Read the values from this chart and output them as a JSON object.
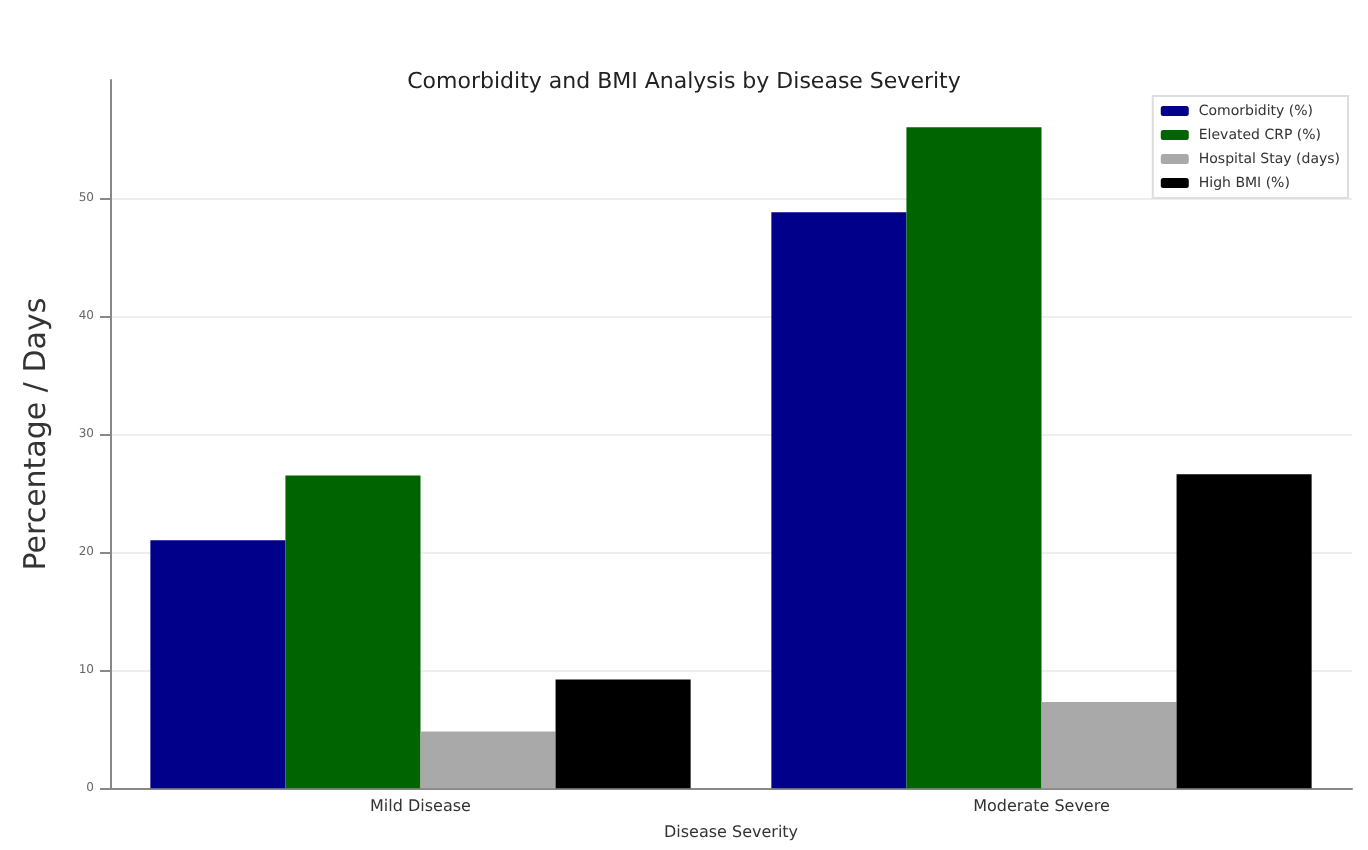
{
  "chart_data": {
    "type": "bar",
    "title": "Comorbidity and BMI Analysis by Disease Severity",
    "xlabel": "Disease Severity",
    "ylabel": "Percentage / Days",
    "categories": [
      "Mild Disease",
      "Moderate Severe"
    ],
    "series": [
      {
        "name": "Comorbidity (%)",
        "color": "#00008b",
        "values": [
          21,
          48.8
        ]
      },
      {
        "name": "Elevated CRP (%)",
        "color": "#006400",
        "values": [
          26.5,
          56
        ]
      },
      {
        "name": "Hospital Stay (days)",
        "color": "#a9a9a9",
        "values": [
          4.8,
          7.3
        ]
      },
      {
        "name": "High BMI (%)",
        "color": "#000000",
        "values": [
          9.2,
          26.6
        ]
      }
    ],
    "ylim": [
      0,
      60
    ],
    "yticks": [
      0,
      10,
      20,
      30,
      40,
      50
    ],
    "grid": "y",
    "legend": "top right"
  }
}
